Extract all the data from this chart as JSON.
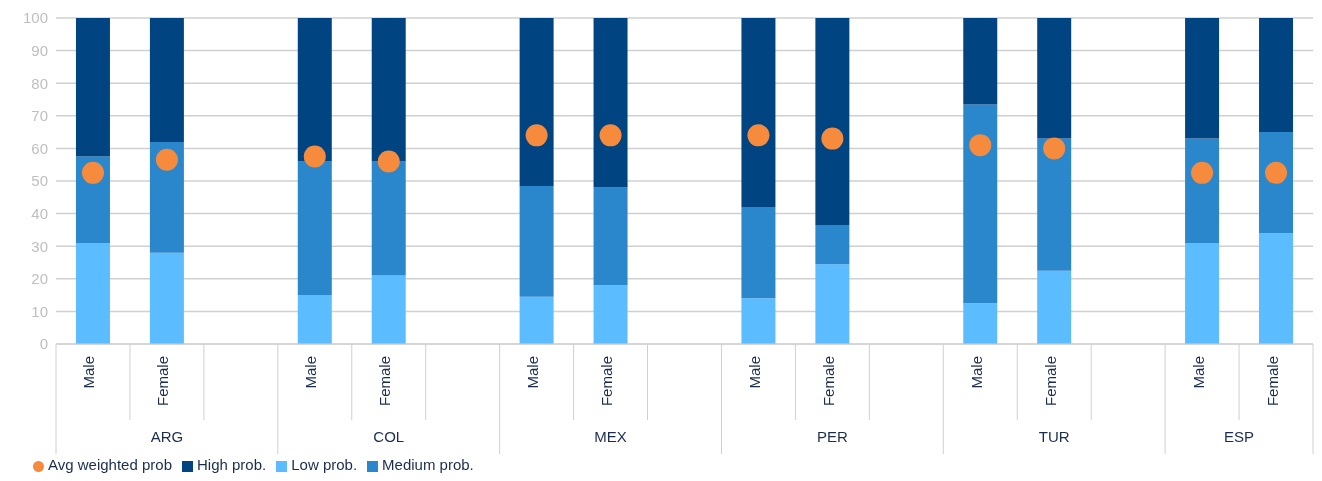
{
  "chart_data": {
    "type": "bar",
    "stacked": true,
    "categories": [
      "Male",
      "Female",
      null,
      "Male",
      "Female",
      null,
      "Male",
      "Female",
      null,
      "Male",
      "Female",
      null,
      "Male",
      "Female",
      null,
      "Male",
      "Female"
    ],
    "annotations": [
      "ARG",
      "COL",
      "MEX",
      "PER",
      "TUR",
      "ESP"
    ],
    "series": [
      {
        "name": "Low prob.",
        "color": "#5bbdff",
        "values": [
          31,
          28,
          null,
          15,
          21,
          null,
          14.5,
          18,
          null,
          14,
          24.5,
          null,
          12.5,
          22.5,
          null,
          31,
          34
        ]
      },
      {
        "name": "Medium prob.",
        "color": "#2a87cb",
        "values": [
          26.5,
          34,
          null,
          41,
          35,
          null,
          34,
          30,
          null,
          28,
          12,
          null,
          61,
          40.5,
          null,
          32,
          31
        ]
      },
      {
        "name": "High prob.",
        "color": "#004581",
        "values": [
          42.5,
          38,
          null,
          44,
          44,
          null,
          51.5,
          52,
          null,
          58,
          63.5,
          null,
          26.5,
          37,
          null,
          37,
          35
        ]
      },
      {
        "name": "Avg weighted prob",
        "type": "scatter",
        "marker": "circle",
        "color": "#f68b3d",
        "values": [
          52.5,
          56.5,
          null,
          57.5,
          56,
          null,
          64,
          64,
          null,
          64,
          63,
          null,
          61,
          60,
          null,
          52.5,
          52.5
        ]
      }
    ],
    "ylim": [
      0,
      100
    ],
    "yticks": [
      0,
      10,
      20,
      30,
      40,
      50,
      60,
      70,
      80,
      90,
      100
    ],
    "grid": "y",
    "legend": "bottom left"
  }
}
